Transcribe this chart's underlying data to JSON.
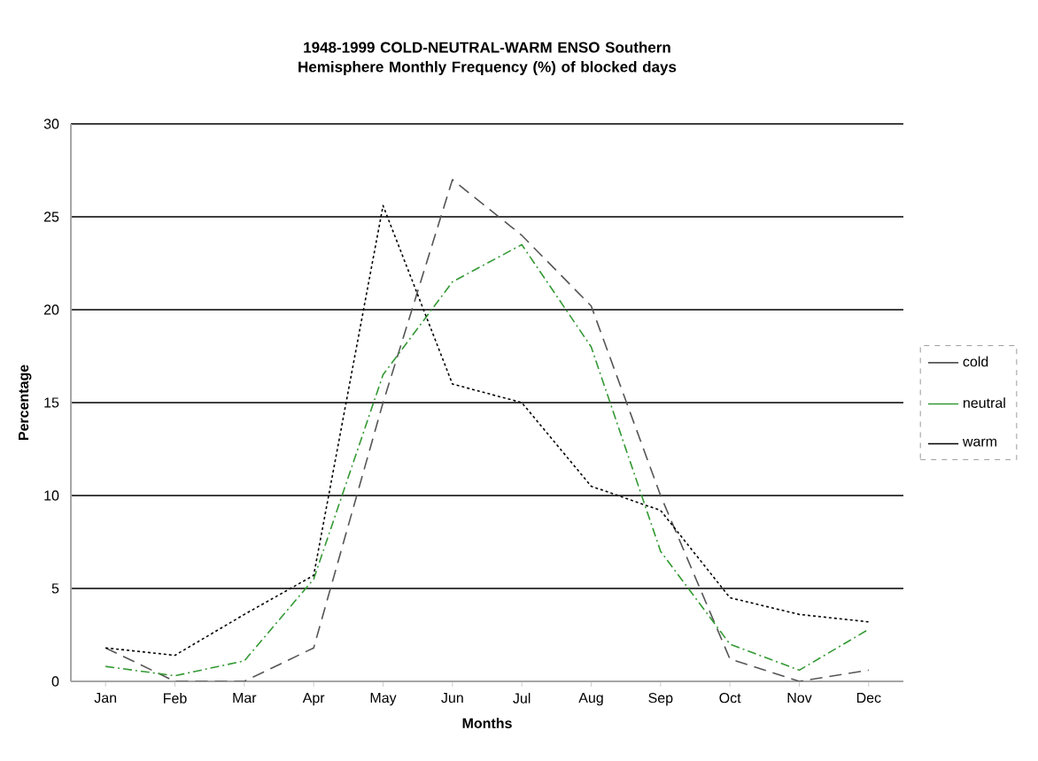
{
  "chart_data": {
    "type": "line",
    "title": "1948-1999 COLD-NEUTRAL-WARM ENSO Southern Hemisphere Monthly Frequency (%) of blocked days",
    "xlabel": "Months",
    "ylabel": "Percentage",
    "categories": [
      "Jan",
      "Feb",
      "Mar",
      "Apr",
      "May",
      "Jun",
      "Jul",
      "Aug",
      "Sep",
      "Oct",
      "Nov",
      "Dec"
    ],
    "series": [
      {
        "name": "cold",
        "color": "#555555",
        "line_style": "dashed",
        "values": [
          1.8,
          0,
          0,
          1.8,
          15,
          27,
          24,
          20.2,
          10,
          1.2,
          0,
          0.6
        ]
      },
      {
        "name": "neutral",
        "color": "#339933",
        "line_style": "dashdot",
        "values": [
          0.8,
          0.3,
          1.1,
          5.5,
          16.5,
          21.5,
          23.5,
          18,
          7,
          2,
          0.6,
          2.8
        ]
      },
      {
        "name": "warm",
        "color": "#000000",
        "line_style": "dotted",
        "values": [
          1.8,
          1.4,
          3.6,
          5.7,
          25.6,
          16,
          15,
          10.5,
          9.2,
          4.5,
          3.6,
          3.2
        ]
      }
    ],
    "ylim": [
      0,
      30
    ],
    "yticks": [
      0,
      5,
      10,
      15,
      20,
      25,
      30
    ],
    "grid": "y",
    "legend": "right",
    "marker": "none"
  }
}
